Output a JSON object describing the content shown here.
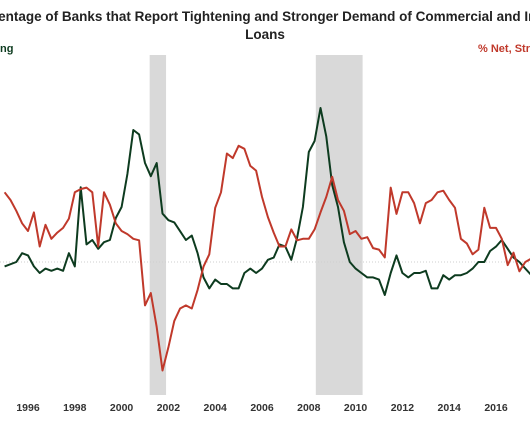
{
  "chart_data": {
    "type": "line",
    "title": "Percentage of Banks that Report Tightening and Stronger Demand of Commercial and Industrial Loans",
    "title_lines": [
      "rcentage of Banks that Report Tightening and Stronger Demand of Commercial and Ind",
      "Loans"
    ],
    "left_axis_label": "ng",
    "right_axis_label": "% Net, Str",
    "x_ticks": [
      "1996",
      "1998",
      "2000",
      "2002",
      "2004",
      "2006",
      "2008",
      "2010",
      "2012",
      "2014",
      "2016"
    ],
    "xlim": [
      1995.0,
      2017.6
    ],
    "recessions": [
      [
        2001.2,
        2001.9
      ],
      [
        2008.3,
        2010.3
      ]
    ],
    "series": [
      {
        "axis": "left",
        "color": "#0d3b1f",
        "x": [
          1995,
          1995.5,
          1995.75,
          1996,
          1996.25,
          1996.5,
          1996.75,
          1997,
          1997.25,
          1997.5,
          1997.75,
          1998,
          1998.25,
          1998.5,
          1998.75,
          1999,
          1999.25,
          1999.5,
          1999.75,
          2000,
          2000.25,
          2000.5,
          2000.75,
          2001,
          2001.25,
          2001.5,
          2001.75,
          2002,
          2002.25,
          2002.5,
          2002.75,
          2003,
          2003.25,
          2003.5,
          2003.75,
          2004,
          2004.25,
          2004.5,
          2004.75,
          2005,
          2005.25,
          2005.5,
          2005.75,
          2006,
          2006.25,
          2006.5,
          2006.75,
          2007,
          2007.25,
          2007.5,
          2007.75,
          2008,
          2008.25,
          2008.5,
          2008.75,
          2009,
          2009.25,
          2009.5,
          2009.75,
          2010,
          2010.25,
          2010.5,
          2010.75,
          2011,
          2011.25,
          2011.5,
          2011.75,
          2012,
          2012.25,
          2012.5,
          2012.75,
          2013,
          2013.25,
          2013.5,
          2013.75,
          2014,
          2014.25,
          2014.5,
          2014.75,
          2015,
          2015.25,
          2015.5,
          2015.75,
          2016,
          2016.25,
          2016.5,
          2016.75,
          2017,
          2017.25,
          2017.6
        ],
        "values": [
          -2,
          0,
          4,
          3,
          -2,
          -5,
          -3,
          -4,
          -3,
          -4,
          4,
          -2,
          34,
          8,
          10,
          6,
          9,
          10,
          20,
          25,
          40,
          60,
          58,
          45,
          39,
          45,
          22,
          19,
          18,
          14,
          10,
          12,
          4,
          -7,
          -12,
          -8,
          -10,
          -10,
          -12,
          -12,
          -5,
          -3,
          -5,
          -3,
          1,
          2,
          8,
          7,
          1,
          11,
          25,
          50,
          55,
          70,
          57,
          35,
          25,
          9,
          0,
          -3,
          -5,
          -7,
          -7,
          -8,
          -15,
          -5,
          3,
          -5,
          -7,
          -5,
          -5,
          -4,
          -12,
          -12,
          -6,
          -8,
          -6,
          -6,
          -5,
          -3,
          0,
          0,
          5,
          7,
          10,
          6,
          2,
          0,
          -3,
          -7
        ]
      },
      {
        "axis": "right",
        "color": "#c0392b",
        "x": [
          1995,
          1995.25,
          1995.5,
          1995.75,
          1996,
          1996.25,
          1996.5,
          1996.75,
          1997,
          1997.25,
          1997.5,
          1997.75,
          1998,
          1998.25,
          1998.5,
          1998.75,
          1999,
          1999.25,
          1999.5,
          1999.75,
          2000,
          2000.25,
          2000.5,
          2000.75,
          2001,
          2001.25,
          2001.5,
          2001.75,
          2002,
          2002.25,
          2002.5,
          2002.75,
          2003,
          2003.25,
          2003.5,
          2003.75,
          2004,
          2004.25,
          2004.5,
          2004.75,
          2005,
          2005.25,
          2005.5,
          2005.75,
          2006,
          2006.25,
          2006.5,
          2006.75,
          2007,
          2007.25,
          2007.5,
          2007.75,
          2008,
          2008.25,
          2008.5,
          2008.75,
          2009,
          2009.25,
          2009.5,
          2009.75,
          2010,
          2010.25,
          2010.5,
          2010.75,
          2011,
          2011.25,
          2011.5,
          2011.75,
          2012,
          2012.25,
          2012.5,
          2012.75,
          2013,
          2013.25,
          2013.5,
          2013.75,
          2014,
          2014.25,
          2014.5,
          2014.75,
          2015,
          2015.25,
          2015.5,
          2015.75,
          2016,
          2016.25,
          2016.5,
          2016.75,
          2017,
          2017.25,
          2017.6
        ],
        "values": [
          45,
          40,
          33,
          25,
          20,
          32,
          10,
          24,
          15,
          19,
          22,
          28,
          45,
          47,
          48,
          45,
          10,
          45,
          37,
          25,
          20,
          18,
          15,
          14,
          -28,
          -20,
          -42,
          -70,
          -55,
          -38,
          -30,
          -28,
          -30,
          -18,
          -3,
          5,
          35,
          45,
          70,
          67,
          75,
          73,
          62,
          59,
          42,
          29,
          19,
          10,
          10,
          21,
          14,
          15,
          15,
          21,
          32,
          42,
          55,
          40,
          33,
          18,
          20,
          15,
          16,
          9,
          8,
          3,
          48,
          31,
          45,
          45,
          38,
          25,
          38,
          40,
          45,
          46,
          40,
          35,
          15,
          12,
          5,
          8,
          35,
          22,
          22,
          15,
          -2,
          6,
          -6,
          0,
          3
        ]
      }
    ],
    "left_zero_line": true
  }
}
